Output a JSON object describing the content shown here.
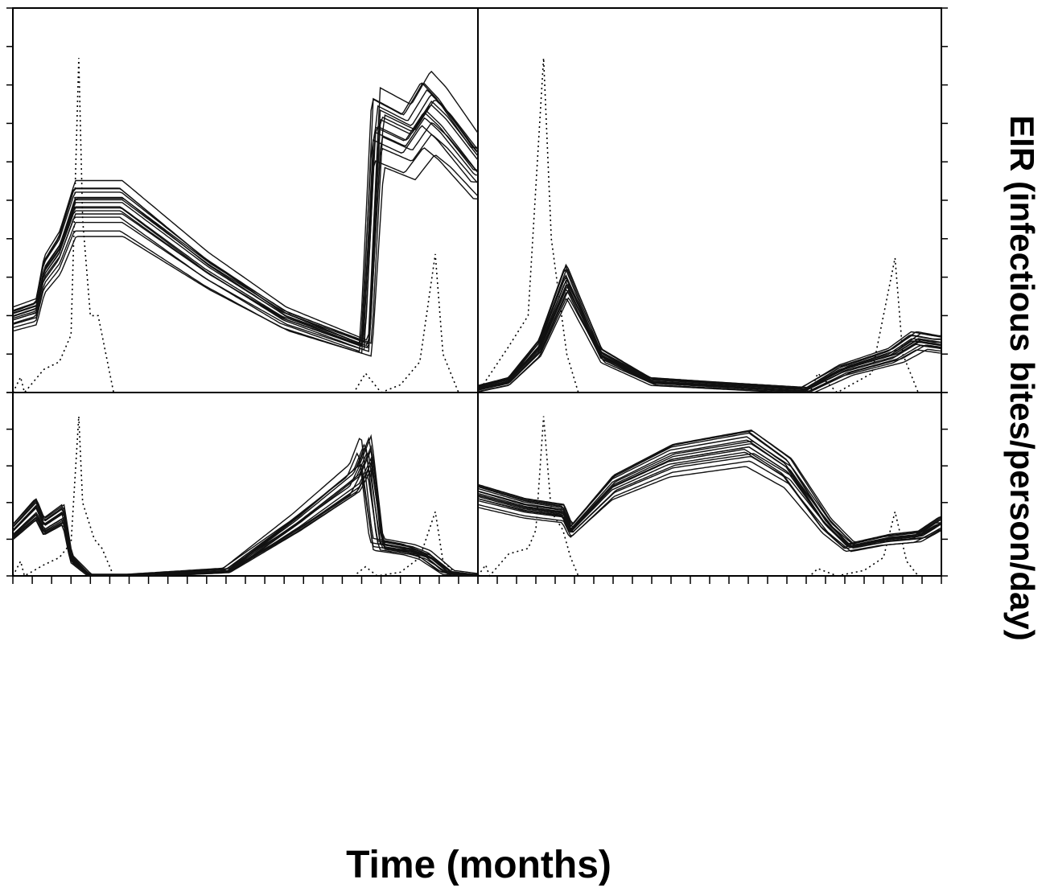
{
  "figure": {
    "xlabel": "Time (months)",
    "ylabel": "EIR (infectious bites/person/day)"
  },
  "chart_data": [
    {
      "type": "line",
      "panel": "top-left",
      "xlim": [
        0,
        12
      ],
      "ylim": [
        0,
        1
      ],
      "grid": false,
      "series_shape": [
        [
          0,
          0.2
        ],
        [
          0.6,
          0.22
        ],
        [
          0.8,
          0.32
        ],
        [
          1.2,
          0.38
        ],
        [
          1.6,
          0.5
        ],
        [
          2.8,
          0.5
        ],
        [
          5,
          0.33
        ],
        [
          7,
          0.2
        ],
        [
          9.1,
          0.12
        ],
        [
          9.4,
          0.72
        ],
        [
          10.2,
          0.68
        ],
        [
          10.7,
          0.76
        ],
        [
          11.1,
          0.72
        ],
        [
          12,
          0.6
        ]
      ],
      "series_count": 16,
      "rainfall": [
        [
          0,
          0
        ],
        [
          0.2,
          0.04
        ],
        [
          0.3,
          0
        ],
        [
          0.8,
          0.06
        ],
        [
          1.2,
          0.08
        ],
        [
          1.5,
          0.15
        ],
        [
          1.7,
          0.87
        ],
        [
          1.8,
          0.45
        ],
        [
          2.0,
          0.2
        ],
        [
          2.2,
          0.2
        ],
        [
          2.4,
          0.1
        ],
        [
          2.6,
          0
        ],
        [
          8.8,
          0
        ],
        [
          9.1,
          0.05
        ],
        [
          9.5,
          0
        ],
        [
          10.0,
          0.02
        ],
        [
          10.5,
          0.08
        ],
        [
          10.9,
          0.36
        ],
        [
          11.1,
          0.1
        ],
        [
          11.5,
          0
        ]
      ]
    },
    {
      "type": "line",
      "panel": "top-right",
      "xlim": [
        0,
        12
      ],
      "ylim": [
        0,
        1
      ],
      "grid": false,
      "series_shape": [
        [
          0,
          0.01
        ],
        [
          0.8,
          0.03
        ],
        [
          1.6,
          0.12
        ],
        [
          2.3,
          0.3
        ],
        [
          3.2,
          0.1
        ],
        [
          4.5,
          0.03
        ],
        [
          8.5,
          0.005
        ],
        [
          9.5,
          0.06
        ],
        [
          10.8,
          0.1
        ],
        [
          11.4,
          0.14
        ],
        [
          12,
          0.13
        ]
      ],
      "series_count": 16,
      "rainfall": [
        [
          0,
          0
        ],
        [
          0.8,
          0.12
        ],
        [
          1.3,
          0.2
        ],
        [
          1.7,
          0.87
        ],
        [
          1.9,
          0.4
        ],
        [
          2.3,
          0.1
        ],
        [
          2.6,
          0
        ],
        [
          8.6,
          0
        ],
        [
          8.8,
          0.05
        ],
        [
          9.3,
          0
        ],
        [
          10.2,
          0.05
        ],
        [
          10.8,
          0.35
        ],
        [
          11.0,
          0.1
        ],
        [
          11.4,
          0
        ]
      ]
    },
    {
      "type": "line",
      "panel": "bottom-left",
      "xlim": [
        0,
        12
      ],
      "ylim": [
        0,
        1
      ],
      "grid": false,
      "series_shape": [
        [
          0,
          0.25
        ],
        [
          0.6,
          0.38
        ],
        [
          0.8,
          0.28
        ],
        [
          1.3,
          0.35
        ],
        [
          1.5,
          0.1
        ],
        [
          2.0,
          0
        ],
        [
          3.0,
          0
        ],
        [
          5.5,
          0.03
        ],
        [
          7.3,
          0.3
        ],
        [
          8.8,
          0.55
        ],
        [
          9.1,
          0.7
        ],
        [
          9.4,
          0.18
        ],
        [
          10.2,
          0.15
        ],
        [
          10.6,
          0.12
        ],
        [
          11.2,
          0.02
        ],
        [
          12,
          0
        ]
      ],
      "series_count": 16,
      "rainfall": [
        [
          0,
          0
        ],
        [
          0.2,
          0.08
        ],
        [
          0.3,
          0
        ],
        [
          0.8,
          0.06
        ],
        [
          1.2,
          0.1
        ],
        [
          1.5,
          0.18
        ],
        [
          1.7,
          0.87
        ],
        [
          1.8,
          0.4
        ],
        [
          2.1,
          0.2
        ],
        [
          2.3,
          0.15
        ],
        [
          2.6,
          0
        ],
        [
          8.8,
          0
        ],
        [
          9.1,
          0.05
        ],
        [
          9.4,
          0
        ],
        [
          10.0,
          0.02
        ],
        [
          10.5,
          0.1
        ],
        [
          10.9,
          0.35
        ],
        [
          11.1,
          0.08
        ],
        [
          11.5,
          0
        ]
      ]
    },
    {
      "type": "line",
      "panel": "bottom-right",
      "xlim": [
        0,
        12
      ],
      "ylim": [
        0,
        1
      ],
      "grid": false,
      "series_shape": [
        [
          0,
          0.45
        ],
        [
          1.2,
          0.38
        ],
        [
          2.2,
          0.35
        ],
        [
          2.4,
          0.25
        ],
        [
          3.5,
          0.5
        ],
        [
          5,
          0.65
        ],
        [
          7,
          0.72
        ],
        [
          8,
          0.58
        ],
        [
          9,
          0.28
        ],
        [
          9.6,
          0.16
        ],
        [
          10.5,
          0.2
        ],
        [
          11.4,
          0.22
        ],
        [
          12,
          0.3
        ]
      ],
      "series_count": 16,
      "rainfall": [
        [
          0,
          0
        ],
        [
          0.2,
          0.06
        ],
        [
          0.3,
          0
        ],
        [
          0.8,
          0.12
        ],
        [
          1.3,
          0.15
        ],
        [
          1.5,
          0.25
        ],
        [
          1.7,
          0.87
        ],
        [
          1.9,
          0.35
        ],
        [
          2.2,
          0.25
        ],
        [
          2.4,
          0.1
        ],
        [
          2.6,
          0
        ],
        [
          8.6,
          0
        ],
        [
          8.8,
          0.04
        ],
        [
          9.3,
          0
        ],
        [
          10.0,
          0.03
        ],
        [
          10.5,
          0.1
        ],
        [
          10.8,
          0.35
        ],
        [
          11.1,
          0.08
        ],
        [
          11.4,
          0
        ]
      ]
    }
  ]
}
